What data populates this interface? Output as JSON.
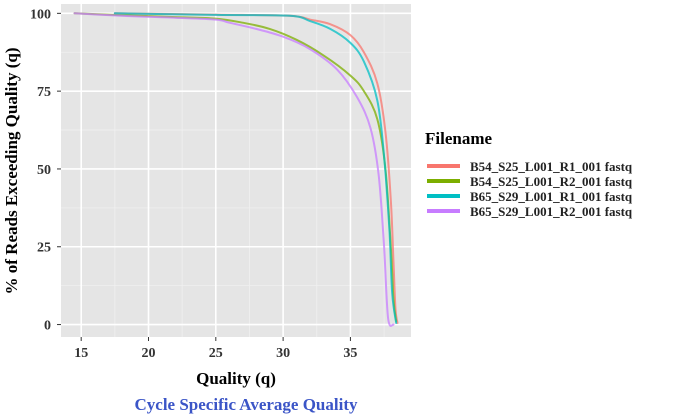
{
  "chart_data": {
    "type": "line",
    "xlabel": "Quality (q)",
    "ylabel": "% of Reads Exceeding Quality (q)",
    "xlim": [
      13.5,
      39.5
    ],
    "ylim": [
      -4,
      103
    ],
    "x_ticks": [
      15,
      20,
      25,
      30,
      35
    ],
    "y_ticks": [
      0,
      25,
      50,
      75,
      100
    ],
    "grid": true,
    "legend": {
      "title": "Filename",
      "position": "right"
    },
    "series": [
      {
        "name": "B54_S25_L001_R1_001 fastq",
        "color": "#f8766d",
        "points": [
          [
            17.5,
            100
          ],
          [
            25,
            99.6
          ],
          [
            30.5,
            99.2
          ],
          [
            32,
            98
          ],
          [
            33.5,
            96.5
          ],
          [
            35,
            93
          ],
          [
            36,
            87.5
          ],
          [
            37,
            77.5
          ],
          [
            37.6,
            62
          ],
          [
            38,
            40
          ],
          [
            38.2,
            20
          ],
          [
            38.35,
            5
          ],
          [
            38.5,
            0.5
          ]
        ]
      },
      {
        "name": "B54_S25_L001_R2_001 fastq",
        "color": "#7cae00",
        "points": [
          [
            14.5,
            100
          ],
          [
            18,
            99.4
          ],
          [
            22,
            98.8
          ],
          [
            25,
            98.3
          ],
          [
            27,
            97
          ],
          [
            29,
            95
          ],
          [
            31,
            91.5
          ],
          [
            33,
            86.5
          ],
          [
            35,
            80
          ],
          [
            36,
            75
          ],
          [
            37,
            66
          ],
          [
            37.6,
            50
          ],
          [
            38,
            25
          ],
          [
            38.2,
            8
          ],
          [
            38.4,
            1
          ]
        ]
      },
      {
        "name": "B65_S29_L001_R1_001 fastq",
        "color": "#00bfc4",
        "points": [
          [
            17.5,
            100
          ],
          [
            25,
            99.5
          ],
          [
            30.5,
            99.2
          ],
          [
            32,
            97.5
          ],
          [
            33.5,
            95
          ],
          [
            35,
            90.5
          ],
          [
            36,
            84.5
          ],
          [
            37,
            72
          ],
          [
            37.5,
            54
          ],
          [
            37.9,
            30
          ],
          [
            38.1,
            10
          ],
          [
            38.4,
            0.5
          ]
        ]
      },
      {
        "name": "B65_S29_L001_R2_001 fastq",
        "color": "#c77cff",
        "points": [
          [
            14.5,
            100
          ],
          [
            18,
            99.2
          ],
          [
            22,
            98.6
          ],
          [
            25,
            98
          ],
          [
            26,
            97
          ],
          [
            28,
            95
          ],
          [
            30,
            92.5
          ],
          [
            32,
            88.5
          ],
          [
            34,
            82
          ],
          [
            35.5,
            73
          ],
          [
            36.5,
            63
          ],
          [
            37.1,
            48
          ],
          [
            37.5,
            25
          ],
          [
            37.8,
            2
          ],
          [
            38.2,
            0
          ]
        ]
      }
    ],
    "caption": "Cycle Specific Average Quality"
  }
}
